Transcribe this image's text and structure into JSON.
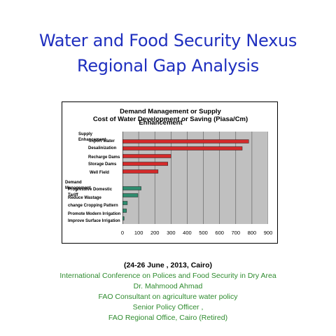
{
  "header": {
    "title_line1": "Water and Food Security Nexus",
    "title_line2": "Regional Gap Analysis"
  },
  "chart_data": {
    "type": "bar",
    "orientation": "horizontal",
    "title_line1": "Demand Management or Supply",
    "title_line2": "Cost of Water Development or Saving (Piasa/Cm)",
    "title_overlap": "Enhancement",
    "xlim": [
      0,
      900
    ],
    "xticks": [
      0,
      100,
      200,
      300,
      400,
      500,
      600,
      700,
      800,
      900
    ],
    "grid": true,
    "groups": [
      {
        "label": "Supply Enhancement",
        "color": "#d42a2a"
      },
      {
        "label": "Demand Management",
        "color": "#2e8b6e"
      }
    ],
    "categories": [
      {
        "label": "Import Water",
        "value": 780,
        "group": 0
      },
      {
        "label": "Desalinization",
        "value": 740,
        "group": 0
      },
      {
        "label": "Recharge Dams",
        "value": 300,
        "group": 0
      },
      {
        "label": "Storage Dams",
        "value": 280,
        "group": 0
      },
      {
        "label": "Well Field",
        "value": 220,
        "group": 0
      },
      {
        "label": "Progressive Domestic Tariff",
        "value": 115,
        "group": 1
      },
      {
        "label": "Reduce Wastage",
        "value": 95,
        "group": 1
      },
      {
        "label": "change Cropping Pattern",
        "value": 30,
        "group": 1
      },
      {
        "label": "Promote Modern Irrigation",
        "value": 25,
        "group": 1
      },
      {
        "label": "Improve Surface Irrigation",
        "value": 10,
        "group": 1
      }
    ]
  },
  "footer": {
    "date": "(24-26 June , 2013, Cairo)",
    "line1": "International Conference on Polices and Food Security in Dry Area",
    "line2": "Dr. Mahmood Ahmad",
    "line3": "FAO Consultant on agriculture  water policy",
    "line4": "Senior Policy Officer ,",
    "line5": "FAO Regional Office, Cairo (Retired)"
  }
}
